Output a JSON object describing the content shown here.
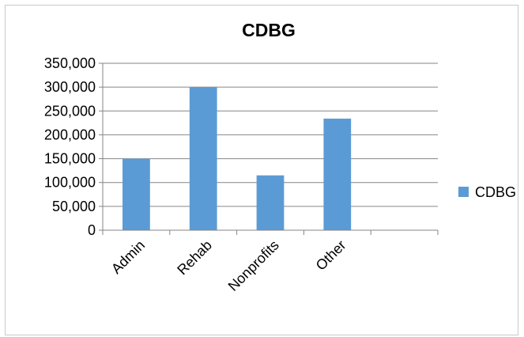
{
  "chart_data": {
    "type": "bar",
    "title": "CDBG",
    "categories": [
      "Admin",
      "Rehab",
      "Nonprofits",
      "Other",
      ""
    ],
    "series": [
      {
        "name": "CDBG",
        "color": "#5b9bd5",
        "values": [
          150000,
          300000,
          115000,
          234000,
          null
        ]
      }
    ],
    "y_ticks": [
      "0",
      "50,000",
      "100,000",
      "150,000",
      "200,000",
      "250,000",
      "300,000",
      "350,000"
    ],
    "ylim": [
      0,
      350000
    ],
    "xlabel": "",
    "ylabel": "",
    "grid": true,
    "legend_position": "right"
  }
}
